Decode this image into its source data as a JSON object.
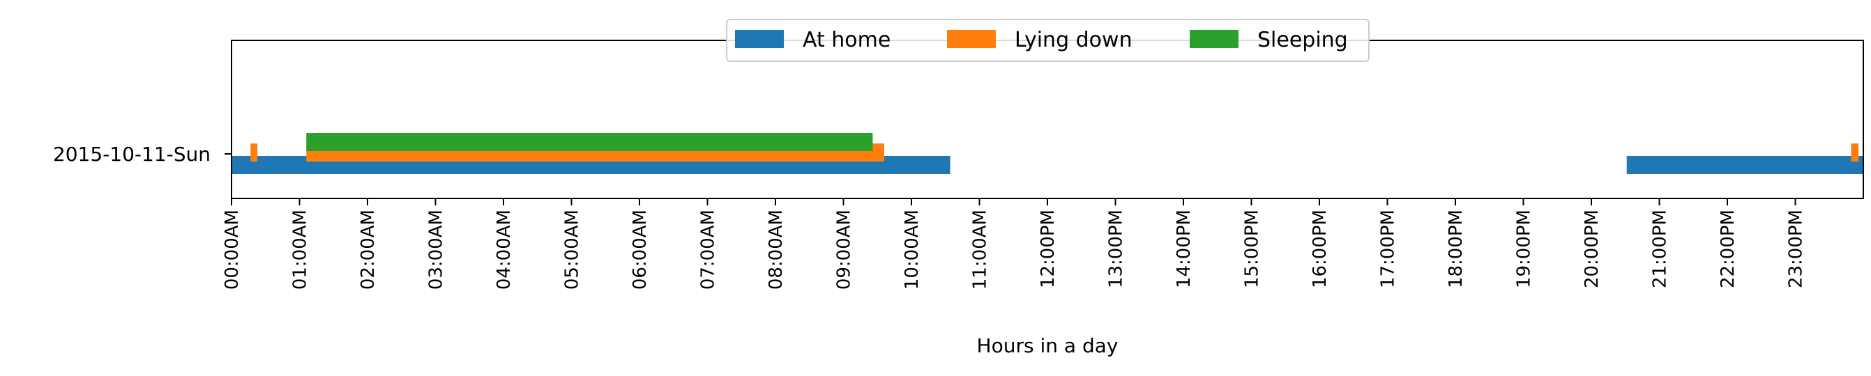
{
  "chart_data": {
    "type": "bar",
    "orientation": "horizontal-timeline",
    "xlabel": "Hours in a day",
    "xlim": [
      0,
      24
    ],
    "x_ticks": [
      "00:00AM",
      "01:00AM",
      "02:00AM",
      "03:00AM",
      "04:00AM",
      "05:00AM",
      "06:00AM",
      "07:00AM",
      "08:00AM",
      "09:00AM",
      "10:00AM",
      "11:00AM",
      "12:00PM",
      "13:00PM",
      "14:00PM",
      "15:00PM",
      "16:00PM",
      "17:00PM",
      "18:00PM",
      "19:00PM",
      "20:00PM",
      "21:00PM",
      "22:00PM",
      "23:00PM"
    ],
    "categories": [
      "2015-10-11-Sun"
    ],
    "legend_position": "top-center",
    "grid": false,
    "series": [
      {
        "name": "At home",
        "color": "#1f77b4",
        "intervals": [
          [
            0.0,
            10.57
          ],
          [
            20.52,
            24.0
          ]
        ]
      },
      {
        "name": "Lying down",
        "color": "#ff7f0e",
        "intervals": [
          [
            0.28,
            0.38
          ],
          [
            1.1,
            9.6
          ],
          [
            23.82,
            23.93
          ]
        ]
      },
      {
        "name": "Sleeping",
        "color": "#2ca02c",
        "intervals": [
          [
            1.1,
            9.43
          ]
        ]
      }
    ]
  }
}
